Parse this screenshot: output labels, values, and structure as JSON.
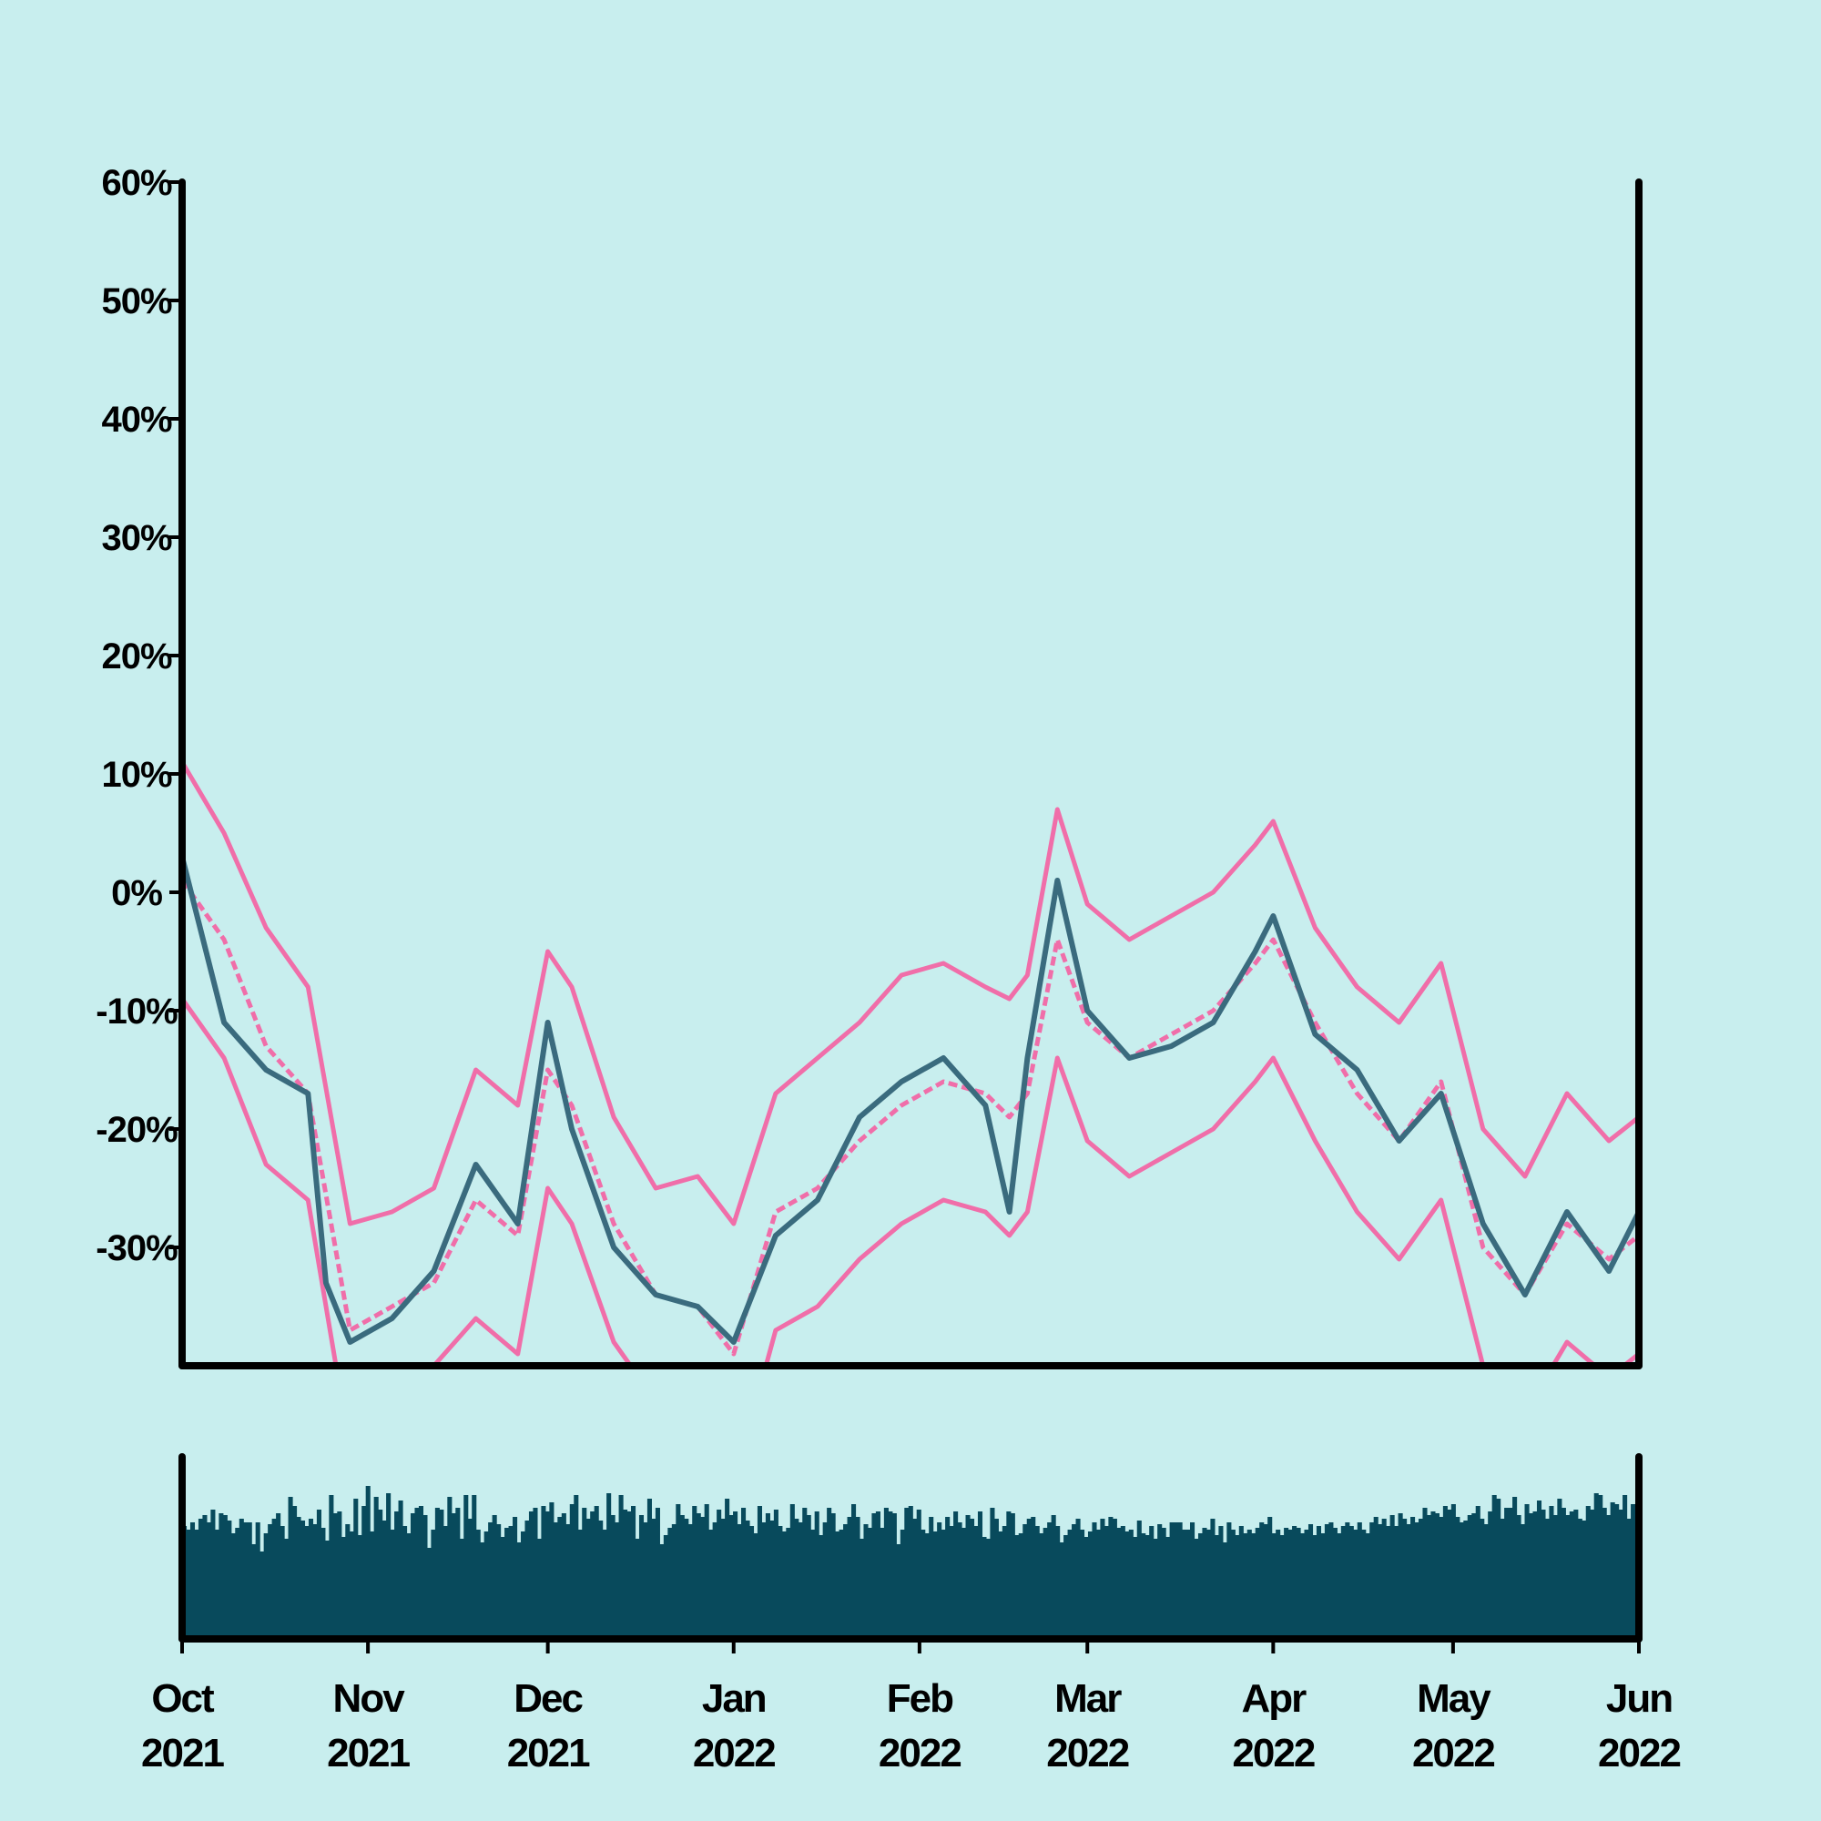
{
  "chart_data": {
    "type": "line",
    "title": "",
    "xlabel": "",
    "ylabel": "",
    "x_range": [
      "2021-10-01",
      "2022-06-01"
    ],
    "ylim": [
      -40,
      60
    ],
    "y_ticks": [
      {
        "value": 60,
        "label": "60%"
      },
      {
        "value": 50,
        "label": "50%"
      },
      {
        "value": 40,
        "label": "40%"
      },
      {
        "value": 30,
        "label": "30%"
      },
      {
        "value": 20,
        "label": "20%"
      },
      {
        "value": 10,
        "label": "10%"
      },
      {
        "value": 0,
        "label": "0%"
      },
      {
        "value": -10,
        "label": "-10%"
      },
      {
        "value": -20,
        "label": "-20%"
      },
      {
        "value": -30,
        "label": "-30%"
      }
    ],
    "x_ticks": [
      {
        "date": "2021-10-01",
        "month": "Oct",
        "year": "2021"
      },
      {
        "date": "2021-11-01",
        "month": "Nov",
        "year": "2021"
      },
      {
        "date": "2021-12-01",
        "month": "Dec",
        "year": "2021"
      },
      {
        "date": "2022-01-01",
        "month": "Jan",
        "year": "2022"
      },
      {
        "date": "2022-02-01",
        "month": "Feb",
        "year": "2022"
      },
      {
        "date": "2022-03-01",
        "month": "Mar",
        "year": "2022"
      },
      {
        "date": "2022-04-01",
        "month": "Apr",
        "year": "2022"
      },
      {
        "date": "2022-05-01",
        "month": "May",
        "year": "2022"
      },
      {
        "date": "2022-06-01",
        "month": "Jun",
        "year": "2022"
      }
    ],
    "grid": false,
    "legend": "none",
    "colors": {
      "background": "#c8eeee",
      "price": "#3a6b7e",
      "bands": "#f06ea9",
      "volume": "#084a5c",
      "axis": "#000000"
    },
    "price": {
      "x": [
        "2021-10-01",
        "2021-10-08",
        "2021-10-15",
        "2021-10-22",
        "2021-10-25",
        "2021-10-29",
        "2021-11-05",
        "2021-11-12",
        "2021-11-19",
        "2021-11-26",
        "2021-12-01",
        "2021-12-05",
        "2021-12-12",
        "2021-12-19",
        "2021-12-26",
        "2022-01-01",
        "2022-01-08",
        "2022-01-15",
        "2022-01-22",
        "2022-01-29",
        "2022-02-05",
        "2022-02-12",
        "2022-02-16",
        "2022-02-19",
        "2022-02-24",
        "2022-03-01",
        "2022-03-08",
        "2022-03-15",
        "2022-03-22",
        "2022-03-29",
        "2022-04-01",
        "2022-04-08",
        "2022-04-15",
        "2022-04-22",
        "2022-04-29",
        "2022-05-06",
        "2022-05-13",
        "2022-05-20",
        "2022-05-27",
        "2022-06-01"
      ],
      "values": [
        3,
        -11,
        -15,
        -17,
        -33,
        -38,
        -36,
        -32,
        -23,
        -28,
        -11,
        -20,
        -30,
        -34,
        -35,
        -38,
        -29,
        -26,
        -19,
        -16,
        -14,
        -18,
        -27,
        -14,
        1,
        -10,
        -14,
        -13,
        -11,
        -5,
        -2,
        -12,
        -15,
        -21,
        -17,
        -28,
        -34,
        -27,
        -32,
        -27
      ]
    },
    "middle_band": {
      "x": [
        "2021-10-01",
        "2021-10-08",
        "2021-10-15",
        "2021-10-22",
        "2021-10-29",
        "2021-11-05",
        "2021-11-12",
        "2021-11-19",
        "2021-11-26",
        "2021-12-01",
        "2021-12-05",
        "2021-12-12",
        "2021-12-19",
        "2021-12-26",
        "2022-01-01",
        "2022-01-08",
        "2022-01-15",
        "2022-01-22",
        "2022-01-29",
        "2022-02-05",
        "2022-02-12",
        "2022-02-16",
        "2022-02-19",
        "2022-02-24",
        "2022-03-01",
        "2022-03-08",
        "2022-03-15",
        "2022-03-22",
        "2022-03-29",
        "2022-04-01",
        "2022-04-08",
        "2022-04-15",
        "2022-04-22",
        "2022-04-29",
        "2022-05-06",
        "2022-05-13",
        "2022-05-20",
        "2022-05-27",
        "2022-06-01"
      ],
      "values": [
        1,
        -4,
        -13,
        -17,
        -37,
        -35,
        -33,
        -26,
        -29,
        -15,
        -18,
        -28,
        -34,
        -35,
        -39,
        -27,
        -25,
        -21,
        -18,
        -16,
        -17,
        -19,
        -17,
        -4,
        -11,
        -14,
        -12,
        -10,
        -6,
        -4,
        -11,
        -17,
        -21,
        -16,
        -30,
        -34,
        -28,
        -31,
        -29
      ]
    },
    "upper_band": {
      "x": [
        "2021-10-01",
        "2021-10-08",
        "2021-10-15",
        "2021-10-22",
        "2021-10-29",
        "2021-11-05",
        "2021-11-12",
        "2021-11-19",
        "2021-11-26",
        "2021-12-01",
        "2021-12-05",
        "2021-12-12",
        "2021-12-19",
        "2021-12-26",
        "2022-01-01",
        "2022-01-08",
        "2022-01-15",
        "2022-01-22",
        "2022-01-29",
        "2022-02-05",
        "2022-02-12",
        "2022-02-16",
        "2022-02-19",
        "2022-02-24",
        "2022-03-01",
        "2022-03-08",
        "2022-03-15",
        "2022-03-22",
        "2022-03-29",
        "2022-04-01",
        "2022-04-08",
        "2022-04-15",
        "2022-04-22",
        "2022-04-29",
        "2022-05-06",
        "2022-05-13",
        "2022-05-20",
        "2022-05-27",
        "2022-06-01"
      ],
      "values": [
        11,
        5,
        -3,
        -8,
        -28,
        -27,
        -25,
        -15,
        -18,
        -5,
        -8,
        -19,
        -25,
        -24,
        -28,
        -17,
        -14,
        -11,
        -7,
        -6,
        -8,
        -9,
        -7,
        7,
        -1,
        -4,
        -2,
        0,
        4,
        6,
        -3,
        -8,
        -11,
        -6,
        -20,
        -24,
        -17,
        -21,
        -19
      ]
    },
    "lower_band": {
      "x": [
        "2021-10-01",
        "2021-10-08",
        "2021-10-15",
        "2021-10-22",
        "2021-10-29",
        "2021-11-05",
        "2021-11-12",
        "2021-11-19",
        "2021-11-26",
        "2021-12-01",
        "2021-12-05",
        "2021-12-12",
        "2021-12-19",
        "2021-12-26",
        "2022-01-01",
        "2022-01-08",
        "2022-01-15",
        "2022-01-22",
        "2022-01-29",
        "2022-02-05",
        "2022-02-12",
        "2022-02-16",
        "2022-02-19",
        "2022-02-24",
        "2022-03-01",
        "2022-03-08",
        "2022-03-15",
        "2022-03-22",
        "2022-03-29",
        "2022-04-01",
        "2022-04-08",
        "2022-04-15",
        "2022-04-22",
        "2022-04-29",
        "2022-05-06",
        "2022-05-13",
        "2022-05-20",
        "2022-05-27",
        "2022-06-01"
      ],
      "values": [
        -9,
        -14,
        -23,
        -26,
        -47,
        -45,
        -40,
        -36,
        -39,
        -25,
        -28,
        -38,
        -43,
        -45,
        -50,
        -37,
        -35,
        -31,
        -28,
        -26,
        -27,
        -29,
        -27,
        -14,
        -21,
        -24,
        -22,
        -20,
        -16,
        -14,
        -21,
        -27,
        -31,
        -26,
        -40,
        -44,
        -38,
        -41,
        -39
      ]
    },
    "volume": {
      "range": [
        0,
        1
      ],
      "values": [
        0.62,
        0.6,
        0.64,
        0.6,
        0.66,
        0.68,
        0.64,
        0.71,
        0.6,
        0.69,
        0.68,
        0.65,
        0.58,
        0.61,
        0.66,
        0.64,
        0.64,
        0.52,
        0.64,
        0.48,
        0.58,
        0.63,
        0.66,
        0.69,
        0.62,
        0.55,
        0.78,
        0.73,
        0.67,
        0.65,
        0.62,
        0.66,
        0.63,
        0.71,
        0.61,
        0.54,
        0.79,
        0.69,
        0.7,
        0.56,
        0.63,
        0.59,
        0.77,
        0.57,
        0.73,
        0.84,
        0.59,
        0.78,
        0.71,
        0.65,
        0.8,
        0.6,
        0.7,
        0.76,
        0.62,
        0.58,
        0.69,
        0.72,
        0.73,
        0.68,
        0.5,
        0.6,
        0.72,
        0.71,
        0.62,
        0.78,
        0.69,
        0.72,
        0.55,
        0.79,
        0.66,
        0.79,
        0.6,
        0.53,
        0.59,
        0.64,
        0.68,
        0.63,
        0.56,
        0.61,
        0.62,
        0.67,
        0.53,
        0.59,
        0.65,
        0.7,
        0.72,
        0.55,
        0.73,
        0.7,
        0.75,
        0.64,
        0.67,
        0.69,
        0.63,
        0.74,
        0.79,
        0.6,
        0.72,
        0.66,
        0.7,
        0.73,
        0.65,
        0.6,
        0.8,
        0.68,
        0.64,
        0.79,
        0.71,
        0.7,
        0.73,
        0.55,
        0.68,
        0.64,
        0.77,
        0.66,
        0.72,
        0.52,
        0.57,
        0.61,
        0.63,
        0.74,
        0.68,
        0.66,
        0.63,
        0.73,
        0.69,
        0.67,
        0.74,
        0.6,
        0.64,
        0.71,
        0.66,
        0.77,
        0.68,
        0.7,
        0.63,
        0.72,
        0.65,
        0.62,
        0.58,
        0.73,
        0.64,
        0.69,
        0.65,
        0.71,
        0.62,
        0.59,
        0.61,
        0.74,
        0.66,
        0.64,
        0.72,
        0.68,
        0.6,
        0.7,
        0.57,
        0.64,
        0.72,
        0.69,
        0.59,
        0.6,
        0.63,
        0.67,
        0.74,
        0.67,
        0.55,
        0.63,
        0.61,
        0.69,
        0.7,
        0.61,
        0.72,
        0.7,
        0.69,
        0.52,
        0.6,
        0.72,
        0.73,
        0.66,
        0.71,
        0.6,
        0.58,
        0.67,
        0.59,
        0.64,
        0.6,
        0.67,
        0.62,
        0.7,
        0.64,
        0.61,
        0.68,
        0.66,
        0.62,
        0.7,
        0.56,
        0.55,
        0.72,
        0.66,
        0.59,
        0.62,
        0.7,
        0.69,
        0.57,
        0.58,
        0.63,
        0.66,
        0.67,
        0.62,
        0.58,
        0.61,
        0.64,
        0.68,
        0.62,
        0.53,
        0.57,
        0.6,
        0.63,
        0.66,
        0.6,
        0.56,
        0.59,
        0.64,
        0.6,
        0.66,
        0.62,
        0.67,
        0.66,
        0.61,
        0.62,
        0.59,
        0.6,
        0.56,
        0.65,
        0.58,
        0.57,
        0.62,
        0.55,
        0.63,
        0.61,
        0.56,
        0.64,
        0.64,
        0.64,
        0.6,
        0.6,
        0.64,
        0.55,
        0.58,
        0.61,
        0.6,
        0.66,
        0.57,
        0.62,
        0.53,
        0.64,
        0.6,
        0.57,
        0.62,
        0.58,
        0.6,
        0.58,
        0.61,
        0.64,
        0.63,
        0.67,
        0.58,
        0.6,
        0.57,
        0.61,
        0.6,
        0.62,
        0.61,
        0.58,
        0.6,
        0.63,
        0.57,
        0.62,
        0.58,
        0.63,
        0.64,
        0.61,
        0.58,
        0.62,
        0.64,
        0.62,
        0.6,
        0.64,
        0.6,
        0.58,
        0.64,
        0.67,
        0.63,
        0.66,
        0.62,
        0.68,
        0.62,
        0.69,
        0.66,
        0.63,
        0.67,
        0.64,
        0.66,
        0.72,
        0.68,
        0.7,
        0.69,
        0.67,
        0.73,
        0.71,
        0.74,
        0.67,
        0.64,
        0.65,
        0.68,
        0.69,
        0.73,
        0.66,
        0.63,
        0.7,
        0.79,
        0.77,
        0.66,
        0.72,
        0.72,
        0.78,
        0.68,
        0.63,
        0.74,
        0.69,
        0.7,
        0.76,
        0.71,
        0.66,
        0.73,
        0.68,
        0.77,
        0.72,
        0.68,
        0.7,
        0.71,
        0.66,
        0.65,
        0.73,
        0.71,
        0.8,
        0.79,
        0.72,
        0.68,
        0.75,
        0.74,
        0.71,
        0.79,
        0.66,
        0.74,
        0.64
      ]
    }
  }
}
